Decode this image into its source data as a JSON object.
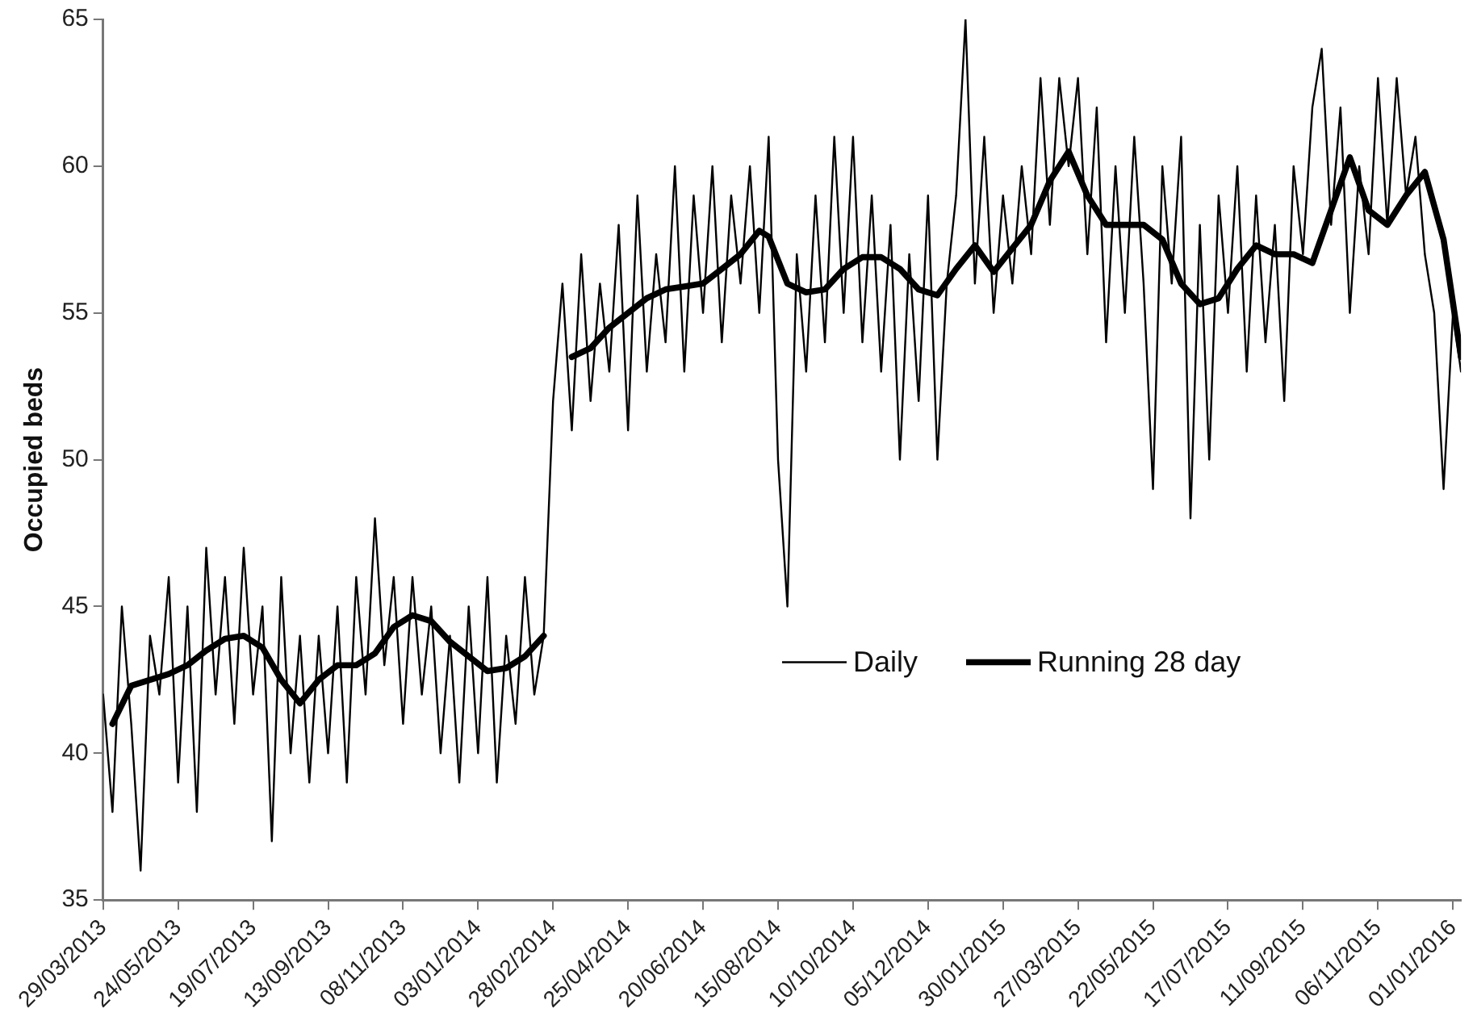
{
  "chart_data": {
    "type": "line",
    "ylabel": "Occupied beds",
    "legend": "center right",
    "marker": "none",
    "grid": false,
    "xlim": [
      "2013-03-29",
      "2016-01-07"
    ],
    "ylim": [
      35,
      65
    ],
    "yticks": [
      35,
      40,
      45,
      50,
      55,
      60,
      65
    ],
    "xticks": [
      {
        "value": "2013-03-29",
        "label": "29/03/2013"
      },
      {
        "value": "2013-05-24",
        "label": "24/05/2013"
      },
      {
        "value": "2013-07-19",
        "label": "19/07/2013"
      },
      {
        "value": "2013-09-13",
        "label": "13/09/2013"
      },
      {
        "value": "2013-11-08",
        "label": "08/11/2013"
      },
      {
        "value": "2014-01-03",
        "label": "03/01/2014"
      },
      {
        "value": "2014-02-28",
        "label": "28/02/2014"
      },
      {
        "value": "2014-04-25",
        "label": "25/04/2014"
      },
      {
        "value": "2014-06-20",
        "label": "20/06/2014"
      },
      {
        "value": "2014-08-15",
        "label": "15/08/2014"
      },
      {
        "value": "2014-10-10",
        "label": "10/10/2014"
      },
      {
        "value": "2014-12-05",
        "label": "05/12/2014"
      },
      {
        "value": "2015-01-30",
        "label": "30/01/2015"
      },
      {
        "value": "2015-03-27",
        "label": "27/03/2015"
      },
      {
        "value": "2015-05-22",
        "label": "22/05/2015"
      },
      {
        "value": "2015-07-17",
        "label": "17/07/2015"
      },
      {
        "value": "2015-09-11",
        "label": "11/09/2015"
      },
      {
        "value": "2015-11-06",
        "label": "06/11/2015"
      },
      {
        "value": "2016-01-01",
        "label": "01/01/2016"
      }
    ],
    "series": [
      {
        "name": "Daily",
        "color": "#000000",
        "line_style": "solid",
        "x": [
          "2013-03-29",
          "2013-04-05",
          "2013-04-12",
          "2013-04-19",
          "2013-04-26",
          "2013-05-03",
          "2013-05-10",
          "2013-05-17",
          "2013-05-24",
          "2013-05-31",
          "2013-06-07",
          "2013-06-14",
          "2013-06-21",
          "2013-06-28",
          "2013-07-05",
          "2013-07-12",
          "2013-07-19",
          "2013-07-26",
          "2013-08-02",
          "2013-08-09",
          "2013-08-16",
          "2013-08-23",
          "2013-08-30",
          "2013-09-06",
          "2013-09-13",
          "2013-09-20",
          "2013-09-27",
          "2013-10-04",
          "2013-10-11",
          "2013-10-18",
          "2013-10-25",
          "2013-11-01",
          "2013-11-08",
          "2013-11-15",
          "2013-11-22",
          "2013-11-29",
          "2013-12-06",
          "2013-12-13",
          "2013-12-20",
          "2013-12-27",
          "2014-01-03",
          "2014-01-10",
          "2014-01-17",
          "2014-01-24",
          "2014-01-31",
          "2014-02-07",
          "2014-02-14",
          "2014-02-21",
          "2014-02-28",
          "2014-03-07",
          "2014-03-14",
          "2014-03-21",
          "2014-03-28",
          "2014-04-04",
          "2014-04-11",
          "2014-04-18",
          "2014-04-25",
          "2014-05-02",
          "2014-05-09",
          "2014-05-16",
          "2014-05-23",
          "2014-05-30",
          "2014-06-06",
          "2014-06-13",
          "2014-06-20",
          "2014-06-27",
          "2014-07-04",
          "2014-07-11",
          "2014-07-18",
          "2014-07-25",
          "2014-08-01",
          "2014-08-08",
          "2014-08-15",
          "2014-08-22",
          "2014-08-29",
          "2014-09-05",
          "2014-09-12",
          "2014-09-19",
          "2014-09-26",
          "2014-10-03",
          "2014-10-10",
          "2014-10-17",
          "2014-10-24",
          "2014-10-31",
          "2014-11-07",
          "2014-11-14",
          "2014-11-21",
          "2014-11-28",
          "2014-12-05",
          "2014-12-12",
          "2014-12-19",
          "2014-12-26",
          "2015-01-02",
          "2015-01-09",
          "2015-01-16",
          "2015-01-23",
          "2015-01-30",
          "2015-02-06",
          "2015-02-13",
          "2015-02-20",
          "2015-02-27",
          "2015-03-06",
          "2015-03-13",
          "2015-03-20",
          "2015-03-27",
          "2015-04-03",
          "2015-04-10",
          "2015-04-17",
          "2015-04-24",
          "2015-05-01",
          "2015-05-08",
          "2015-05-15",
          "2015-05-22",
          "2015-05-29",
          "2015-06-05",
          "2015-06-12",
          "2015-06-19",
          "2015-06-26",
          "2015-07-03",
          "2015-07-10",
          "2015-07-17",
          "2015-07-24",
          "2015-07-31",
          "2015-08-07",
          "2015-08-14",
          "2015-08-21",
          "2015-08-28",
          "2015-09-04",
          "2015-09-11",
          "2015-09-18",
          "2015-09-25",
          "2015-10-02",
          "2015-10-09",
          "2015-10-16",
          "2015-10-23",
          "2015-10-30",
          "2015-11-06",
          "2015-11-13",
          "2015-11-20",
          "2015-11-27",
          "2015-12-04",
          "2015-12-11",
          "2015-12-18",
          "2015-12-25",
          "2016-01-01",
          "2016-01-07"
        ],
        "values": [
          42,
          38,
          45,
          41,
          36,
          44,
          42,
          46,
          39,
          45,
          38,
          47,
          42,
          46,
          41,
          47,
          42,
          45,
          37,
          46,
          40,
          44,
          39,
          44,
          40,
          45,
          39,
          46,
          42,
          48,
          43,
          46,
          41,
          46,
          42,
          45,
          40,
          44,
          39,
          45,
          40,
          46,
          39,
          44,
          41,
          46,
          42,
          44,
          52,
          56,
          51,
          57,
          52,
          56,
          53,
          58,
          51,
          59,
          53,
          57,
          54,
          60,
          53,
          59,
          55,
          60,
          54,
          59,
          56,
          60,
          55,
          61,
          50,
          45,
          57,
          53,
          59,
          54,
          61,
          55,
          61,
          54,
          59,
          53,
          58,
          50,
          57,
          52,
          59,
          50,
          56,
          59,
          65,
          56,
          61,
          55,
          59,
          56,
          60,
          57,
          63,
          58,
          63,
          60,
          63,
          57,
          62,
          54,
          60,
          55,
          61,
          56,
          49,
          60,
          56,
          61,
          48,
          58,
          50,
          59,
          55,
          60,
          53,
          59,
          54,
          58,
          52,
          60,
          57,
          62,
          64,
          58,
          62,
          55,
          60,
          57,
          63,
          58,
          63,
          59,
          61,
          57,
          55,
          49,
          55,
          53
        ]
      },
      {
        "name": "Running 28 day",
        "color": "#000000",
        "line_style": "solid",
        "x": [
          "2013-04-05",
          "2013-04-19",
          "2013-05-03",
          "2013-05-17",
          "2013-05-31",
          "2013-06-14",
          "2013-06-28",
          "2013-07-12",
          "2013-07-26",
          "2013-08-09",
          "2013-08-23",
          "2013-09-06",
          "2013-09-20",
          "2013-10-04",
          "2013-10-18",
          "2013-11-01",
          "2013-11-15",
          "2013-11-29",
          "2013-12-13",
          "2013-12-27",
          "2014-01-10",
          "2014-01-24",
          "2014-02-07",
          "2014-02-21",
          "2014-02-28",
          "2014-03-14",
          "2014-03-28",
          "2014-04-11",
          "2014-04-25",
          "2014-05-09",
          "2014-05-23",
          "2014-06-06",
          "2014-06-20",
          "2014-07-04",
          "2014-07-18",
          "2014-08-01",
          "2014-08-08",
          "2014-08-22",
          "2014-09-05",
          "2014-09-19",
          "2014-10-03",
          "2014-10-17",
          "2014-10-31",
          "2014-11-14",
          "2014-11-28",
          "2014-12-12",
          "2014-12-26",
          "2015-01-09",
          "2015-01-23",
          "2015-02-06",
          "2015-02-20",
          "2015-03-06",
          "2015-03-20",
          "2015-04-03",
          "2015-04-17",
          "2015-05-01",
          "2015-05-15",
          "2015-05-29",
          "2015-06-12",
          "2015-06-26",
          "2015-07-10",
          "2015-07-24",
          "2015-08-07",
          "2015-08-21",
          "2015-09-04",
          "2015-09-18",
          "2015-10-02",
          "2015-10-16",
          "2015-10-30",
          "2015-11-13",
          "2015-11-27",
          "2015-12-11",
          "2015-12-25",
          "2016-01-07"
        ],
        "values": [
          41,
          42.3,
          42.5,
          42.7,
          43,
          43.5,
          43.9,
          44,
          43.6,
          42.5,
          41.7,
          42.5,
          43,
          43,
          43.4,
          44.3,
          44.7,
          44.5,
          43.8,
          43.3,
          42.8,
          42.9,
          43.3,
          44,
          null,
          53.5,
          53.8,
          54.5,
          55,
          55.5,
          55.8,
          55.9,
          56,
          56.5,
          57,
          57.8,
          57.6,
          56,
          55.7,
          55.8,
          56.5,
          56.9,
          56.9,
          56.5,
          55.8,
          55.6,
          56.5,
          57.3,
          56.4,
          57.2,
          58,
          59.5,
          60.5,
          59,
          58,
          58,
          58,
          57.5,
          56,
          55.3,
          55.5,
          56.5,
          57.3,
          57,
          57,
          56.7,
          58.5,
          60.3,
          58.5,
          58,
          59,
          59.8,
          57.5,
          53.5
        ]
      }
    ]
  }
}
